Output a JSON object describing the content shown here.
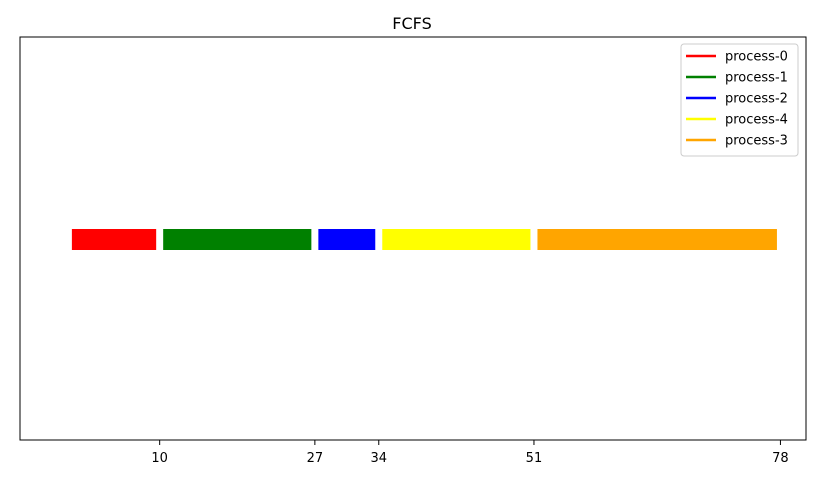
{
  "chart_data": {
    "type": "bar",
    "orientation": "horizontal-timeline",
    "title": "FCFS",
    "xlabel": "",
    "ylabel": "",
    "xticks": [
      10,
      27,
      34,
      51,
      78
    ],
    "grid": false,
    "legend_position": "top-right",
    "series": [
      {
        "name": "process-0",
        "start": 0,
        "end": 10,
        "color": "#ff0000"
      },
      {
        "name": "process-1",
        "start": 10,
        "end": 27,
        "color": "#008000"
      },
      {
        "name": "process-2",
        "start": 27,
        "end": 34,
        "color": "#0000ff"
      },
      {
        "name": "process-4",
        "start": 34,
        "end": 51,
        "color": "#ffff00"
      },
      {
        "name": "process-3",
        "start": 51,
        "end": 78,
        "color": "#ffa500"
      }
    ]
  }
}
